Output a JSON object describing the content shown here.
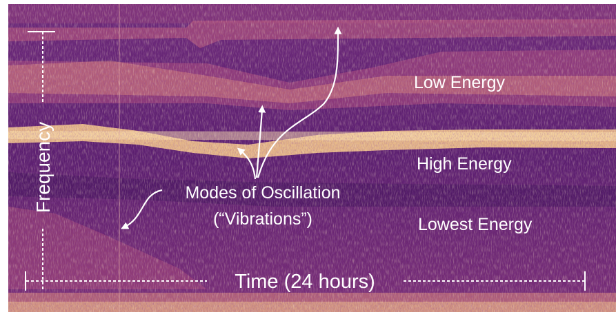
{
  "labels": {
    "frequency_axis": "Frequency",
    "time_axis": "Time (24 hours)",
    "band_low": "Low Energy",
    "band_high": "High Energy",
    "band_lowest": "Lowest Energy",
    "modes_line1": "Modes of Oscillation",
    "modes_line2": "(“Vibrations”)"
  },
  "colors": {
    "background": "#5a1f6e",
    "dark_band": "#3f1359",
    "mid_band": "#a9457d",
    "bright_band": "#f4c88a",
    "text": "#ffffff"
  }
}
